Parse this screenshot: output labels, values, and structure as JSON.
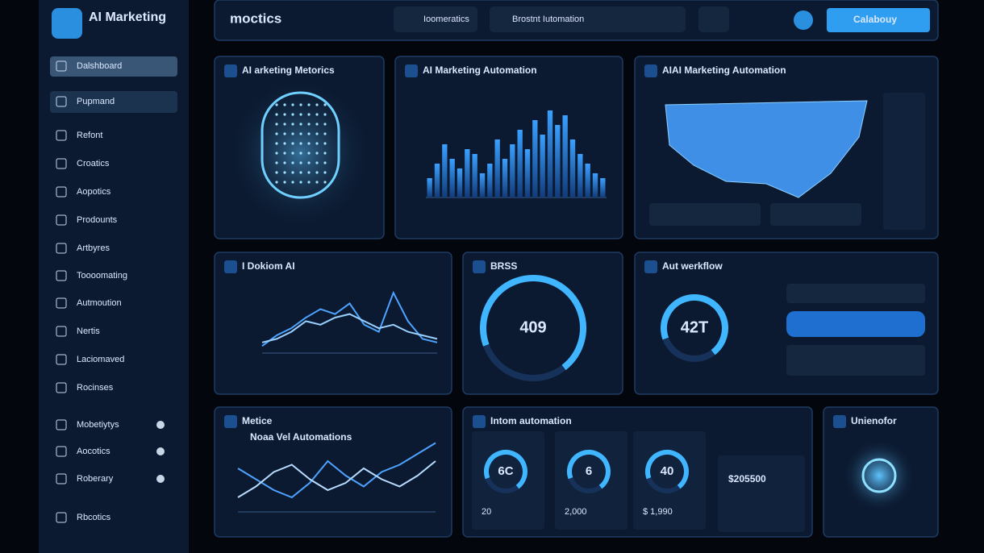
{
  "sidebar": {
    "brand": "AI Marketing",
    "menu": [
      "Dalshboard",
      "Pupmand",
      "Refont",
      "Croatics",
      "Aopotics",
      "Prodounts",
      "Artbyres",
      "Toooomating",
      "Autmoution",
      "Nertis",
      "Laciomaved",
      "Rocinses",
      "Mobetiytys",
      "Aocotics",
      "Roberary",
      "Rbcotics"
    ]
  },
  "topbar": {
    "logo": "moctics",
    "search": "Ioomeratics",
    "dropdown": "Brostnt Iutomation",
    "button": "Calabouy"
  },
  "panels": [
    {
      "title": "AI arketing Metorics"
    },
    {
      "title": "AI Marketing Automation",
      "ylim": [
        0,
        100
      ],
      "bars": [
        20,
        35,
        55,
        40,
        30,
        50,
        45,
        25,
        35,
        60,
        40,
        55,
        70,
        50,
        80,
        65,
        90,
        75,
        85,
        60,
        45,
        35,
        25,
        20
      ]
    },
    {
      "title": "AIAI Marketing Automation"
    },
    {
      "title": "I Dokiom AI",
      "ylim": [
        0,
        100
      ],
      "series": [
        {
          "color": "#4da3ff",
          "values": [
            10,
            25,
            35,
            50,
            62,
            55,
            70,
            40,
            30,
            85,
            45,
            20,
            15
          ]
        },
        {
          "color": "#9ad0ff",
          "values": [
            15,
            20,
            30,
            45,
            40,
            50,
            55,
            45,
            35,
            40,
            30,
            25,
            20
          ]
        }
      ]
    },
    {
      "title": "BRSS",
      "gauge": "409"
    },
    {
      "title": "Aut werkflow",
      "gauge": "42T"
    },
    {
      "title": "Metice",
      "subtitle": "Noaa Vel Automations",
      "ylim": [
        0,
        100
      ],
      "series": [
        {
          "color": "#4da3ff",
          "values": [
            60,
            45,
            30,
            20,
            40,
            70,
            50,
            35,
            55,
            65,
            80,
            95
          ]
        },
        {
          "color": "#b8dcff",
          "values": [
            20,
            35,
            55,
            65,
            45,
            30,
            40,
            60,
            45,
            35,
            50,
            70
          ]
        }
      ]
    },
    {
      "title": "Intom automation",
      "gauges": [
        "6C",
        "6",
        "40"
      ],
      "amounts": [
        "20",
        "2,000",
        "$ 1,990"
      ],
      "total": "$205500"
    },
    {
      "title": "Unienofor"
    }
  ]
}
